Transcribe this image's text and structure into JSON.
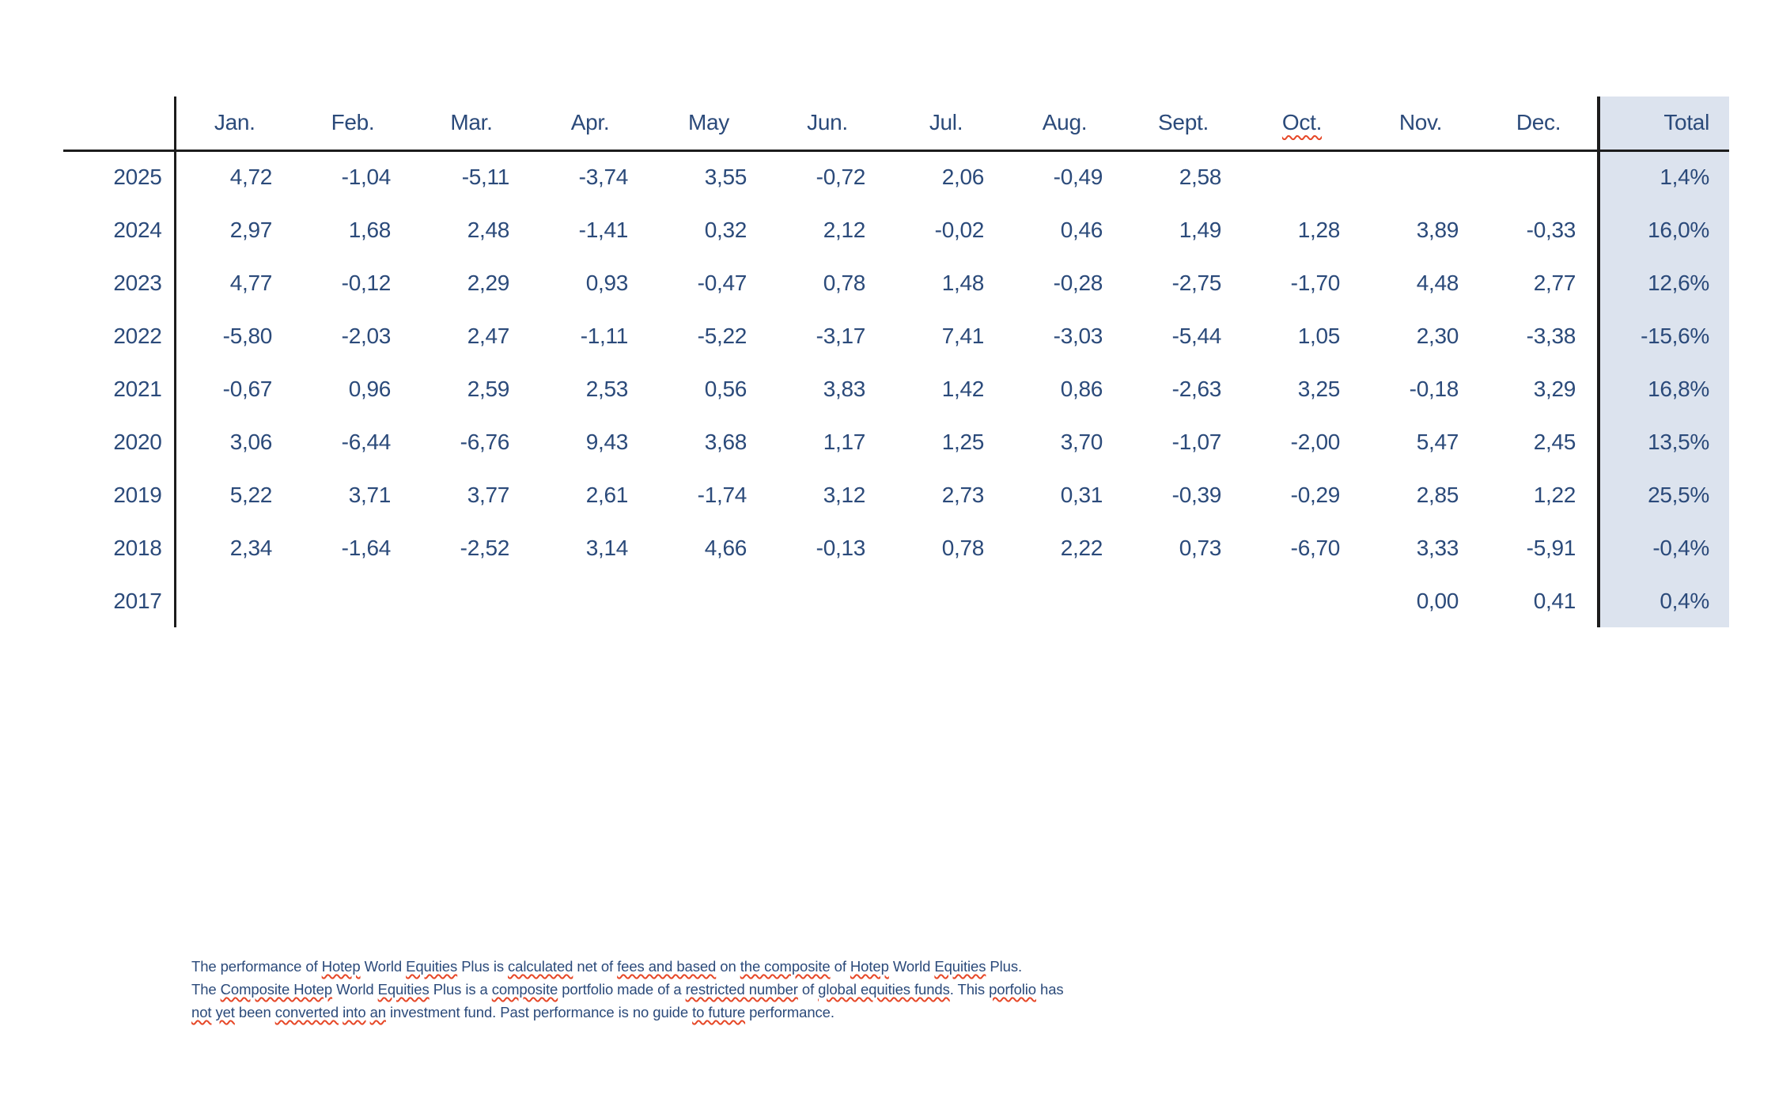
{
  "slide": {
    "colors": {
      "navy": "#2b4a7a",
      "salmon": "#d6958f",
      "band": "#dce3ee",
      "line": "#1c1c1c",
      "squiggle": "#e64727"
    },
    "table": {
      "months": [
        "Jan.",
        "Feb.",
        "Mar.",
        "Apr.",
        "May",
        "Jun.",
        "Jul.",
        "Aug.",
        "Sept.",
        "Oct.",
        "Nov.",
        "Dec."
      ],
      "total_label": "Total",
      "squiggled_month": "Oct.",
      "rows": [
        {
          "year": "2025",
          "values": [
            "4,72",
            "-1,04",
            "-5,11",
            "-3,74",
            "3,55",
            "-0,72",
            "2,06",
            "-0,49",
            "2,58",
            "",
            "",
            ""
          ],
          "total": "1,4%"
        },
        {
          "year": "2024",
          "values": [
            "2,97",
            "1,68",
            "2,48",
            "-1,41",
            "0,32",
            "2,12",
            "-0,02",
            "0,46",
            "1,49",
            "1,28",
            "3,89",
            "-0,33"
          ],
          "total": "16,0%"
        },
        {
          "year": "2023",
          "values": [
            "4,77",
            "-0,12",
            "2,29",
            "0,93",
            "-0,47",
            "0,78",
            "1,48",
            "-0,28",
            "-2,75",
            "-1,70",
            "4,48",
            "2,77"
          ],
          "total": "12,6%"
        },
        {
          "year": "2022",
          "values": [
            "-5,80",
            "-2,03",
            "2,47",
            "-1,11",
            "-5,22",
            "-3,17",
            "7,41",
            "-3,03",
            "-5,44",
            "1,05",
            "2,30",
            "-3,38"
          ],
          "total": "-15,6%"
        },
        {
          "year": "2021",
          "values": [
            "-0,67",
            "0,96",
            "2,59",
            "2,53",
            "0,56",
            "3,83",
            "1,42",
            "0,86",
            "-2,63",
            "3,25",
            "-0,18",
            "3,29"
          ],
          "total": "16,8%"
        },
        {
          "year": "2020",
          "values": [
            "3,06",
            "-6,44",
            "-6,76",
            "9,43",
            "3,68",
            "1,17",
            "1,25",
            "3,70",
            "-1,07",
            "-2,00",
            "5,47",
            "2,45"
          ],
          "total": "13,5%"
        },
        {
          "year": "2019",
          "values": [
            "5,22",
            "3,71",
            "3,77",
            "2,61",
            "-1,74",
            "3,12",
            "2,73",
            "0,31",
            "-0,39",
            "-0,29",
            "2,85",
            "1,22"
          ],
          "total": "25,5%"
        },
        {
          "year": "2018",
          "values": [
            "2,34",
            "-1,64",
            "-2,52",
            "3,14",
            "4,66",
            "-0,13",
            "0,78",
            "2,22",
            "0,73",
            "-6,70",
            "3,33",
            "-5,91"
          ],
          "total": "-0,4%"
        },
        {
          "year": "2017",
          "values": [
            "",
            "",
            "",
            "",
            "",
            "",
            "",
            "",
            "",
            "",
            "0,00",
            "0,41"
          ],
          "total": "0,4%"
        }
      ],
      "negative_shown_in_navy": [
        {
          "row_index": 4,
          "col_index": 10
        }
      ]
    },
    "footnote": {
      "lines": [
        [
          {
            "t": "The performance of ",
            "s": false
          },
          {
            "t": "Hotep",
            "s": true
          },
          {
            "t": " World ",
            "s": false
          },
          {
            "t": "Equities",
            "s": true
          },
          {
            "t": " Plus is ",
            "s": false
          },
          {
            "t": "calculated",
            "s": true
          },
          {
            "t": " net of ",
            "s": false
          },
          {
            "t": "fees and based",
            "s": true
          },
          {
            "t": " on ",
            "s": false
          },
          {
            "t": "the composite",
            "s": true
          },
          {
            "t": " of ",
            "s": false
          },
          {
            "t": "Hotep",
            "s": true
          },
          {
            "t": " World ",
            "s": false
          },
          {
            "t": "Equities",
            "s": true
          },
          {
            "t": " Plus.",
            "s": false
          }
        ],
        [
          {
            "t": "The ",
            "s": false
          },
          {
            "t": "Composite Hotep",
            "s": true
          },
          {
            "t": " World ",
            "s": false
          },
          {
            "t": "Equities",
            "s": true
          },
          {
            "t": " Plus is a ",
            "s": false
          },
          {
            "t": "composite",
            "s": true
          },
          {
            "t": " portfolio made of a ",
            "s": false
          },
          {
            "t": "restricted number",
            "s": true
          },
          {
            "t": " of ",
            "s": false
          },
          {
            "t": "global equities funds",
            "s": true
          },
          {
            "t": ". This ",
            "s": false
          },
          {
            "t": "porfolio",
            "s": true
          },
          {
            "t": " has",
            "s": false
          }
        ],
        [
          {
            "t": "not",
            "s": true
          },
          {
            "t": " ",
            "s": false
          },
          {
            "t": "yet",
            "s": true
          },
          {
            "t": " been ",
            "s": false
          },
          {
            "t": "converted",
            "s": true
          },
          {
            "t": " ",
            "s": false
          },
          {
            "t": "into",
            "s": true
          },
          {
            "t": " ",
            "s": false
          },
          {
            "t": "an",
            "s": true
          },
          {
            "t": " investment fund. Past performance is no guide ",
            "s": false
          },
          {
            "t": "to future",
            "s": true
          },
          {
            "t": " performance.",
            "s": false
          }
        ]
      ]
    }
  }
}
